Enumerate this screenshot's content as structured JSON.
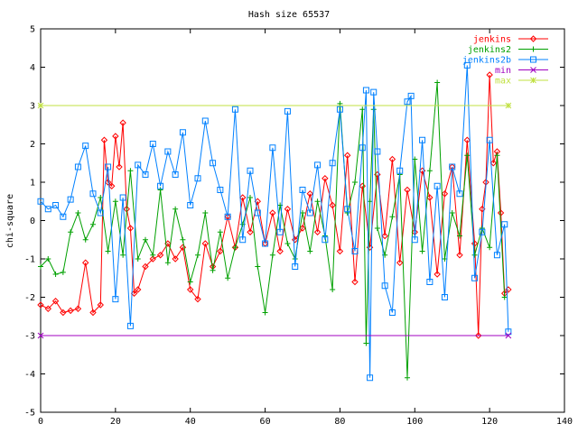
{
  "chart_data": {
    "type": "line",
    "title": "Hash size 65537",
    "xlabel": "",
    "ylabel": "chi-square",
    "xlim": [
      0,
      140
    ],
    "ylim": [
      -5,
      5
    ],
    "xticks": [
      0,
      20,
      40,
      60,
      80,
      100,
      120,
      140
    ],
    "yticks": [
      -5,
      -4,
      -3,
      -2,
      -1,
      0,
      1,
      2,
      3,
      4,
      5
    ],
    "xtick_labels": [
      "0",
      "20",
      "40",
      "60",
      "80",
      "100",
      "120",
      "140"
    ],
    "ytick_labels": [
      "-5",
      "-4",
      "-3",
      "-2",
      "-1",
      "0",
      "1",
      "2",
      "3",
      "4",
      "5"
    ],
    "grid": false,
    "legend_position": "top-right",
    "series": [
      {
        "name": "jenkins",
        "color": "#ff0000",
        "marker": "diamond",
        "x": [
          0,
          2,
          4,
          6,
          8,
          10,
          12,
          14,
          16,
          17,
          18,
          19,
          20,
          21,
          22,
          23,
          24,
          25,
          26,
          28,
          30,
          32,
          34,
          36,
          38,
          40,
          42,
          44,
          46,
          48,
          50,
          52,
          54,
          56,
          58,
          60,
          62,
          64,
          66,
          68,
          70,
          72,
          74,
          76,
          78,
          80,
          82,
          84,
          86,
          88,
          90,
          92,
          94,
          96,
          98,
          100,
          102,
          104,
          106,
          108,
          110,
          112,
          114,
          116,
          117,
          118,
          119,
          120,
          121,
          122,
          123,
          124,
          125
        ],
        "y": [
          -2.2,
          -2.3,
          -2.1,
          -2.4,
          -2.35,
          -2.3,
          -1.1,
          -2.4,
          -2.2,
          2.1,
          1.0,
          0.9,
          2.2,
          1.4,
          2.55,
          0.3,
          -0.2,
          -1.9,
          -1.8,
          -1.2,
          -1.0,
          -0.9,
          -0.6,
          -1.0,
          -0.7,
          -1.8,
          -2.05,
          -0.6,
          -1.2,
          -0.8,
          0.1,
          -0.7,
          0.6,
          -0.3,
          0.5,
          -0.6,
          0.2,
          -0.8,
          0.3,
          -0.5,
          -0.2,
          0.7,
          -0.3,
          1.1,
          0.4,
          -0.8,
          1.7,
          -1.6,
          0.9,
          -0.7,
          1.2,
          -0.4,
          1.6,
          -1.1,
          0.8,
          -0.3,
          1.3,
          0.6,
          -1.4,
          0.7,
          1.4,
          -0.9,
          2.1,
          -0.6,
          -3.0,
          0.3,
          1.0,
          3.8,
          1.5,
          1.8,
          0.2,
          -1.9,
          -1.8
        ]
      },
      {
        "name": "jenkins2",
        "color": "#00a000",
        "marker": "plus",
        "x": [
          0,
          2,
          4,
          6,
          8,
          10,
          12,
          14,
          16,
          18,
          20,
          22,
          24,
          26,
          28,
          30,
          32,
          34,
          36,
          38,
          40,
          42,
          44,
          46,
          48,
          50,
          52,
          54,
          56,
          58,
          60,
          62,
          64,
          66,
          68,
          70,
          72,
          74,
          76,
          78,
          80,
          82,
          84,
          86,
          87,
          88,
          89,
          90,
          92,
          94,
          96,
          98,
          100,
          102,
          104,
          106,
          108,
          110,
          112,
          114,
          116,
          118,
          120,
          122,
          124
        ],
        "y": [
          -1.2,
          -1.0,
          -1.4,
          -1.35,
          -0.3,
          0.2,
          -0.5,
          -0.1,
          0.6,
          -0.8,
          0.5,
          -0.9,
          1.3,
          -1.0,
          -0.5,
          -0.9,
          0.8,
          -1.1,
          0.3,
          -0.5,
          -1.6,
          -0.9,
          0.2,
          -1.3,
          -0.3,
          -1.5,
          -0.7,
          -0.1,
          0.6,
          -1.2,
          -2.4,
          -0.9,
          0.4,
          -0.6,
          -1.0,
          0.2,
          -0.8,
          0.5,
          -0.4,
          -1.8,
          3.05,
          0.2,
          1.0,
          2.9,
          -3.2,
          0.5,
          2.9,
          -0.2,
          -0.9,
          0.1,
          1.2,
          -4.1,
          1.6,
          -0.8,
          1.3,
          3.6,
          -1.0,
          0.2,
          -0.4,
          1.7,
          -0.9,
          -0.2,
          -0.7,
          1.7,
          -2.0
        ]
      },
      {
        "name": "jenkins2b",
        "color": "#0080ff",
        "marker": "square",
        "x": [
          0,
          2,
          4,
          6,
          8,
          10,
          12,
          14,
          16,
          18,
          20,
          22,
          24,
          26,
          28,
          30,
          32,
          34,
          36,
          38,
          40,
          42,
          44,
          46,
          48,
          50,
          52,
          54,
          56,
          58,
          60,
          62,
          64,
          66,
          68,
          70,
          72,
          74,
          76,
          78,
          80,
          82,
          84,
          86,
          87,
          88,
          89,
          90,
          92,
          94,
          96,
          98,
          99,
          100,
          102,
          104,
          106,
          108,
          110,
          112,
          114,
          116,
          118,
          120,
          122,
          124,
          125
        ],
        "y": [
          0.5,
          0.3,
          0.4,
          0.1,
          0.55,
          1.4,
          1.95,
          0.7,
          0.2,
          1.4,
          -2.05,
          0.6,
          -2.75,
          1.45,
          1.2,
          2.0,
          0.9,
          1.8,
          1.2,
          2.3,
          0.4,
          1.1,
          2.6,
          1.5,
          0.8,
          0.1,
          2.9,
          -0.5,
          1.3,
          0.2,
          -0.6,
          1.9,
          -0.3,
          2.85,
          -1.2,
          0.8,
          0.2,
          1.45,
          -0.5,
          1.5,
          2.9,
          0.3,
          -0.8,
          1.9,
          3.4,
          -4.1,
          3.35,
          1.8,
          -1.7,
          -2.4,
          1.3,
          3.1,
          3.25,
          -0.5,
          2.1,
          -1.6,
          0.9,
          -2.0,
          1.4,
          0.7,
          4.05,
          -1.5,
          -0.3,
          2.1,
          -0.9,
          -0.1,
          -2.9
        ]
      },
      {
        "name": "min",
        "color": "#a000c0",
        "marker": "cross",
        "x": [
          0,
          125
        ],
        "y": [
          -3.0,
          -3.0
        ]
      },
      {
        "name": "max",
        "color": "#c0e040",
        "marker": "star",
        "x": [
          0,
          125
        ],
        "y": [
          3.0,
          3.0
        ]
      }
    ]
  }
}
